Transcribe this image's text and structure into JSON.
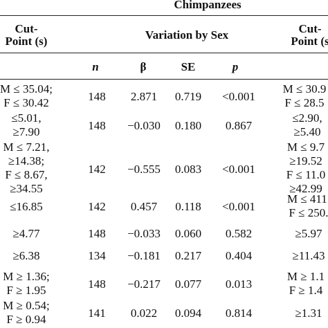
{
  "header": {
    "group_title": "Chimpanzees",
    "cut_point_left": [
      "Cut-",
      "Point (s)"
    ],
    "variation_by_sex": "Variation by Sex",
    "cut_point_right": [
      "Cut-",
      "Point (s"
    ],
    "columns": {
      "n": "n",
      "beta": "β",
      "se": "SE",
      "p": "p"
    }
  },
  "rows": [
    {
      "cut_point": [
        "M ≤ 35.04;",
        "F ≤ 30.42"
      ],
      "n": "148",
      "beta": "2.871",
      "se": "0.719",
      "p": "<0.001",
      "cut_point_right": [
        "M ≤ 30.9",
        "F ≤ 28.5"
      ]
    },
    {
      "cut_point": [
        "≤5.01,",
        "≥7.90"
      ],
      "n": "148",
      "beta": "−0.030",
      "se": "0.180",
      "p": "0.867",
      "cut_point_right": [
        "≤2.90,",
        "≥5.40"
      ]
    },
    {
      "cut_point": [
        "M ≤ 7.21,",
        "≥14.38;",
        "F ≤ 8.67,",
        "≥34.55"
      ],
      "n": "142",
      "beta": "−0.555",
      "se": "0.083",
      "p": "<0.001",
      "cut_point_right": [
        "M ≤ 9.7",
        "≥19.52",
        "F ≤ 11.0",
        "≥42.99"
      ]
    },
    {
      "cut_point": [
        "≤16.85"
      ],
      "n": "142",
      "beta": "0.457",
      "se": "0.118",
      "p": "<0.001",
      "cut_point_right": [
        "M ≤ 411.",
        "F ≤ 250."
      ]
    },
    {
      "cut_point": [
        "≥4.77"
      ],
      "n": "148",
      "beta": "−0.033",
      "se": "0.060",
      "p": "0.582",
      "cut_point_right": [
        "≥5.97"
      ]
    },
    {
      "cut_point": [
        "≥6.38"
      ],
      "n": "134",
      "beta": "−0.181",
      "se": "0.217",
      "p": "0.404",
      "cut_point_right": [
        "≥11.43"
      ]
    },
    {
      "cut_point": [
        "M ≥ 1.36;",
        "F ≥ 1.95"
      ],
      "n": "148",
      "beta": "−0.217",
      "se": "0.077",
      "p": "0.013",
      "cut_point_right": [
        "M ≥ 1.1",
        "F ≥ 1.4"
      ]
    },
    {
      "cut_point": [
        "M ≥ 0.54;",
        "F ≥ 0.94"
      ],
      "n": "141",
      "beta": "0.022",
      "se": "0.094",
      "p": "0.814",
      "cut_point_right": [
        "≥1.31"
      ]
    }
  ]
}
